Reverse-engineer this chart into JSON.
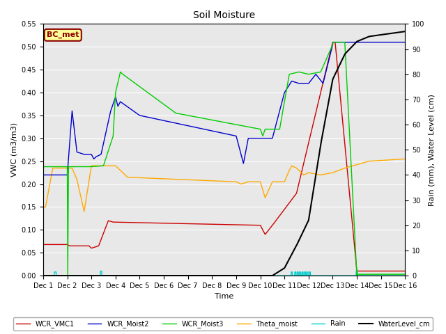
{
  "title": "Soil Moisture",
  "ylabel_left": "VWC (m3/m3)",
  "ylabel_right": "Rain (mm), Water Level (cm)",
  "xlabel": "Time",
  "ylim_left": [
    0.0,
    0.55
  ],
  "ylim_right": [
    0,
    100
  ],
  "plot_bg": "#e8e8e8",
  "fig_bg": "#ffffff",
  "annotation_text": "BC_met",
  "annotation_box_color": "#ffff99",
  "annotation_box_edge": "#8B0000",
  "colors": {
    "WCR_VMC1": "#cc0000",
    "WCR_Moist2": "#0000cc",
    "WCR_Moist3": "#00cc00",
    "Theta_moist": "#ffaa00",
    "Rain": "#00cccc",
    "WaterLevel_cm": "#000000"
  },
  "xtick_labels": [
    "Dec 1",
    "Dec 2",
    "Dec 3",
    "Dec 4",
    "Dec 5",
    "Dec 6",
    "Dec 7",
    "Dec 8",
    "Dec 9",
    "Dec 10",
    "Dec 11",
    "Dec 12",
    "Dec 13",
    "Dec 14",
    "Dec 15",
    "Dec 16"
  ],
  "yticks_left": [
    0.0,
    0.05,
    0.1,
    0.15,
    0.2,
    0.25,
    0.3,
    0.35,
    0.4,
    0.45,
    0.5,
    0.55
  ],
  "yticks_right": [
    0,
    10,
    20,
    30,
    40,
    50,
    60,
    70,
    80,
    90,
    100
  ],
  "line_width": 1.0,
  "grid_color": "#d0d0d0",
  "title_fontsize": 10,
  "axis_label_fontsize": 8,
  "tick_fontsize": 7,
  "legend_fontsize": 7
}
